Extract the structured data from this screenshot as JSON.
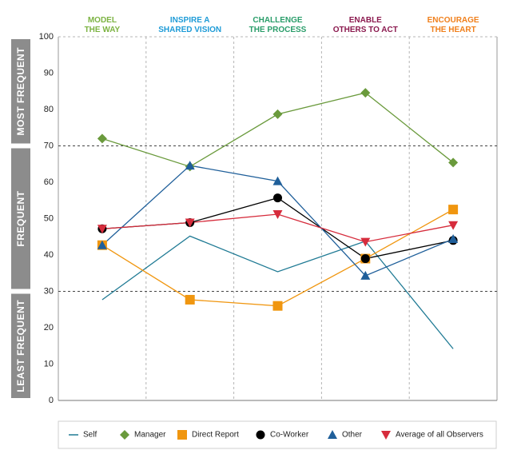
{
  "chart_data": {
    "type": "line",
    "categories": [
      {
        "line1": "MODEL",
        "line2": "THE WAY",
        "color": "#7cb342"
      },
      {
        "line1": "INSPIRE A",
        "line2": "SHARED VISION",
        "color": "#1e9bd7"
      },
      {
        "line1": "CHALLENGE",
        "line2": "THE PROCESS",
        "color": "#2a9d6a"
      },
      {
        "line1": "ENABLE",
        "line2": "OTHERS TO ACT",
        "color": "#8b1a4f"
      },
      {
        "line1": "ENCOURAGE",
        "line2": "THE HEART",
        "color": "#f07f1b"
      }
    ],
    "ylim": [
      0,
      100
    ],
    "yticks": [
      0,
      10,
      20,
      30,
      40,
      50,
      60,
      70,
      80,
      90,
      100
    ],
    "thresholds": [
      30,
      70
    ],
    "bands": [
      {
        "label": "MOST FREQUENT",
        "from": 70,
        "to": 100
      },
      {
        "label": "FREQUENT",
        "from": 30,
        "to": 70
      },
      {
        "label": "LEAST FREQUENT",
        "from": 0,
        "to": 30
      }
    ],
    "series": [
      {
        "name": "Self",
        "color": "#1f7a94",
        "marker": "none",
        "values": [
          27.7,
          45.2,
          35.4,
          43.8,
          14.2
        ]
      },
      {
        "name": "Manager",
        "color": "#6a9a3c",
        "marker": "diamond",
        "values": [
          72.0,
          64.3,
          78.7,
          84.6,
          65.4
        ]
      },
      {
        "name": "Direct Report",
        "color": "#f0960f",
        "marker": "square",
        "values": [
          42.7,
          27.7,
          26.0,
          39.0,
          52.5
        ]
      },
      {
        "name": "Co-Worker",
        "color": "#000000",
        "marker": "circle",
        "values": [
          47.2,
          48.9,
          55.7,
          39.0,
          44.0
        ]
      },
      {
        "name": "Other",
        "color": "#1f5f9a",
        "marker": "triangle",
        "values": [
          42.7,
          64.6,
          60.3,
          34.3,
          44.4
        ]
      },
      {
        "name": "Average of all Observers",
        "color": "#d62c3c",
        "marker": "triangle-down",
        "values": [
          47.2,
          48.9,
          51.2,
          43.6,
          48.2
        ]
      }
    ],
    "legend_position": "bottom"
  }
}
